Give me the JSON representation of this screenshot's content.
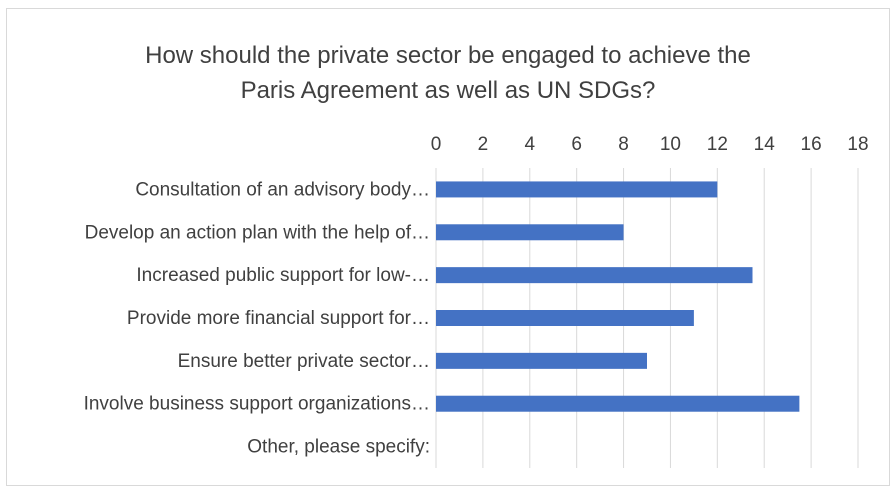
{
  "chart_data": {
    "type": "bar",
    "orientation": "horizontal",
    "title_lines": [
      "How should the private sector be engaged to achieve the",
      "Paris Agreement as well as UN SDGs?"
    ],
    "categories": [
      "Consultation of an advisory body…",
      "Develop an action plan with the help of…",
      "Increased public support for low-…",
      "Provide more financial support for…",
      "Ensure better private sector…",
      "Involve business support organizations…",
      "Other, please specify:"
    ],
    "values": [
      12,
      8,
      13.5,
      11,
      9,
      15.5,
      0
    ],
    "xlim": [
      0,
      18
    ],
    "xticks": [
      "0",
      "2",
      "4",
      "6",
      "8",
      "10",
      "12",
      "14",
      "16",
      "18"
    ],
    "axis_position": "top",
    "grid": true,
    "bar_color": "#4472c4",
    "grid_color": "#d9d9d9"
  }
}
